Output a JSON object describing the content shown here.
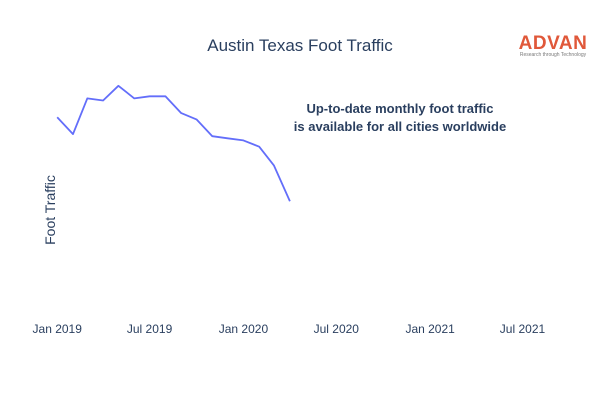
{
  "chart_data": {
    "type": "line",
    "title": "Austin Texas Foot Traffic",
    "xlabel": "",
    "ylabel": "Foot Traffic",
    "y_tick_labels_shown": false,
    "grid": false,
    "x_ticks": [
      "Jan 2019",
      "Jul 2019",
      "Jan 2020",
      "Jul 2020",
      "Jan 2021",
      "Jul 2021"
    ],
    "xlim": [
      "2018-12-10",
      "2021-08-20"
    ],
    "ylim": [
      0,
      100
    ],
    "series": [
      {
        "color": "#636efa",
        "x": [
          "2019-01",
          "2019-02",
          "2019-03",
          "2019-04",
          "2019-05",
          "2019-06",
          "2019-07",
          "2019-08",
          "2019-09",
          "2019-10",
          "2019-11",
          "2019-12",
          "2020-01",
          "2020-02",
          "2020-03",
          "2020-04"
        ],
        "y": [
          87,
          79,
          96,
          95,
          102,
          96,
          97,
          97,
          89,
          86,
          78,
          77,
          76,
          73,
          64,
          47
        ]
      }
    ],
    "annotation": {
      "lines": [
        "Up-to-date monthly foot traffic",
        "is available for all cities worldwide"
      ]
    }
  },
  "logo": {
    "name": "ADVAN",
    "tagline": "Research through Technology",
    "color": "#e0583a"
  }
}
